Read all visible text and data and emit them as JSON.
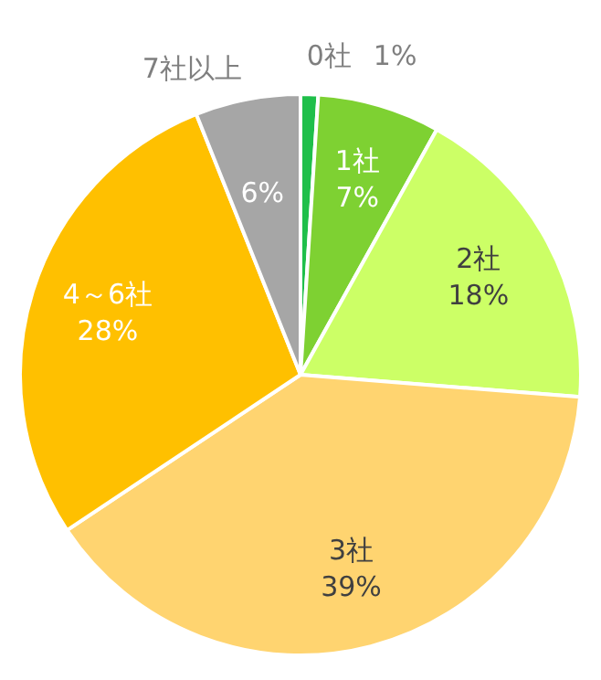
{
  "chart_data": {
    "type": "pie",
    "categories": [
      "0社",
      "1社",
      "2社",
      "3社",
      "4～6社",
      "7社以上"
    ],
    "values": [
      1,
      7,
      18,
      39,
      28,
      6
    ],
    "colors": [
      "#1fbf4a",
      "#7ed132",
      "#ccff66",
      "#ffd470",
      "#ffc000",
      "#a6a6a6"
    ],
    "value_labels": [
      "1%",
      "7%",
      "18%",
      "39%",
      "28%",
      "6%"
    ]
  }
}
